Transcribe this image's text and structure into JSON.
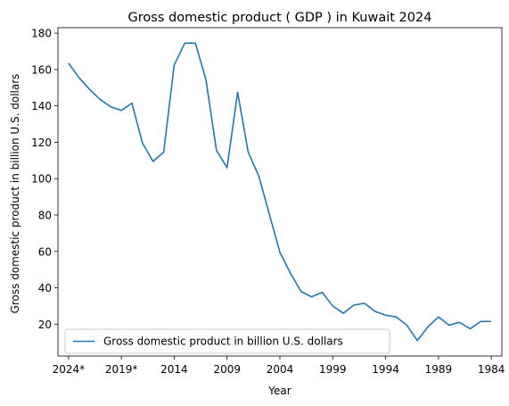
{
  "chart_data": {
    "type": "line",
    "title": "Gross domestic product ( GDP ) in Kuwait 2024",
    "xlabel": "Year",
    "ylabel": "Gross domestic product in billion U.S. dollars",
    "x_order": "descending",
    "xlim": [
      2025,
      1983
    ],
    "ylim": [
      2.5,
      183
    ],
    "xticks": [
      {
        "value": 2024,
        "label": "2024*"
      },
      {
        "value": 2019,
        "label": "2019*"
      },
      {
        "value": 2014,
        "label": "2014"
      },
      {
        "value": 2009,
        "label": "2009"
      },
      {
        "value": 2004,
        "label": "2004"
      },
      {
        "value": 1999,
        "label": "1999"
      },
      {
        "value": 1994,
        "label": "1994"
      },
      {
        "value": 1989,
        "label": "1989"
      },
      {
        "value": 1984,
        "label": "1984"
      }
    ],
    "yticks": [
      20,
      40,
      60,
      80,
      100,
      120,
      140,
      160,
      180
    ],
    "grid": false,
    "legend_position": "lower-left",
    "series": [
      {
        "name": "Gross domestic product in billion U.S. dollars",
        "color": "#1f77b4",
        "x": [
          2024,
          2023,
          2022,
          2021,
          2020,
          2019,
          2018,
          2017,
          2016,
          2015,
          2014,
          2013,
          2012,
          2011,
          2010,
          2009,
          2008,
          2007,
          2006,
          2005,
          2004,
          2003,
          2002,
          2001,
          2000,
          1999,
          1998,
          1997,
          1996,
          1995,
          1994,
          1993,
          1992,
          1991,
          1990,
          1989,
          1988,
          1987,
          1986,
          1985,
          1984
        ],
        "y": [
          163.5,
          155.5,
          149,
          143.5,
          139.5,
          137.5,
          141.5,
          119.5,
          109.5,
          114.5,
          162.5,
          174.5,
          174.5,
          154.5,
          115.5,
          106,
          147.5,
          114.5,
          101.5,
          80.5,
          59.5,
          48,
          38,
          35,
          37.5,
          30,
          26,
          30.5,
          31.5,
          27,
          25,
          24,
          19.5,
          11,
          18.5,
          24,
          19.5,
          21,
          17.5,
          21.5,
          21.5
        ]
      }
    ]
  }
}
